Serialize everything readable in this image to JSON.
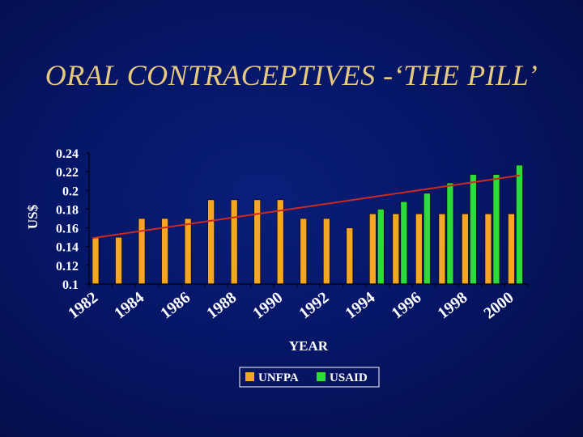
{
  "title": "ORAL CONTRACEPTIVES -‘THE PILL’",
  "colors": {
    "background": "#061667",
    "title": "#e8c980",
    "unfpa": "#f5a623",
    "usaid": "#2bdc3a",
    "trend": "#cc2a1e",
    "axis_text": "#ffffff"
  },
  "chart_data": {
    "type": "bar",
    "xlabel": "YEAR",
    "ylabel": "US$",
    "ylim": [
      0.1,
      0.24
    ],
    "yticks": [
      0.1,
      0.12,
      0.14,
      0.16,
      0.18,
      0.2,
      0.22,
      0.24
    ],
    "ytick_labels": [
      "0.1",
      "0.12",
      "0.14",
      "0.16",
      "0.18",
      "0.2",
      "0.22",
      "0.24"
    ],
    "categories": [
      "1982",
      "1983",
      "1984",
      "1985",
      "1986",
      "1987",
      "1988",
      "1989",
      "1990",
      "1991",
      "1992",
      "1993",
      "1994",
      "1995",
      "1996",
      "1997",
      "1998",
      "1999",
      "2000"
    ],
    "xtick_labels": [
      "1982",
      "1984",
      "1986",
      "1988",
      "1990",
      "1992",
      "1994",
      "1996",
      "1998",
      "2000"
    ],
    "series": [
      {
        "name": "UNFPA",
        "color": "#f5a623",
        "values": [
          0.15,
          0.15,
          0.17,
          0.17,
          0.17,
          0.19,
          0.19,
          0.19,
          0.19,
          0.17,
          0.17,
          0.16,
          0.175,
          0.175,
          0.175,
          0.175,
          0.175,
          0.175,
          0.175
        ]
      },
      {
        "name": "USAID",
        "color": "#2bdc3a",
        "values": [
          null,
          null,
          null,
          null,
          null,
          null,
          null,
          null,
          null,
          null,
          null,
          null,
          0.18,
          0.188,
          0.197,
          0.208,
          0.217,
          0.217,
          0.227
        ]
      }
    ],
    "trendline": {
      "color": "#cc2a1e",
      "start": 0.149,
      "end": 0.216
    },
    "legend": {
      "position": "bottom",
      "entries": [
        "UNFPA",
        "USAID"
      ]
    },
    "grid": false
  }
}
